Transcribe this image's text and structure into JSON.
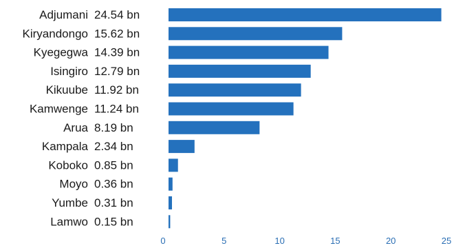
{
  "colors": {
    "bar": "#2471bd",
    "tick_text": "#2a6eb4"
  },
  "chart_data": {
    "type": "bar",
    "orientation": "horizontal",
    "categories": [
      "Adjumani",
      "Kiryandongo",
      "Kyegegwa",
      "Isingiro",
      "Kikuube",
      "Kamwenge",
      "Arua",
      "Kampala",
      "Koboko",
      "Moyo",
      "Yumbe",
      "Lamwo"
    ],
    "values": [
      24.54,
      15.62,
      14.39,
      12.79,
      11.92,
      11.24,
      8.19,
      2.34,
      0.85,
      0.36,
      0.31,
      0.15
    ],
    "value_labels": [
      "24.54 bn",
      "15.62 bn",
      "14.39 bn",
      "12.79 bn",
      "11.92 bn",
      "11.24 bn",
      "8.19 bn",
      "2.34 bn",
      "0.85 bn",
      "0.36 bn",
      "0.31 bn",
      "0.15 bn"
    ],
    "x_ticks": [
      0,
      5,
      10,
      15,
      20,
      25
    ],
    "xlim": [
      0,
      25
    ],
    "grid": false,
    "legend": "none"
  }
}
